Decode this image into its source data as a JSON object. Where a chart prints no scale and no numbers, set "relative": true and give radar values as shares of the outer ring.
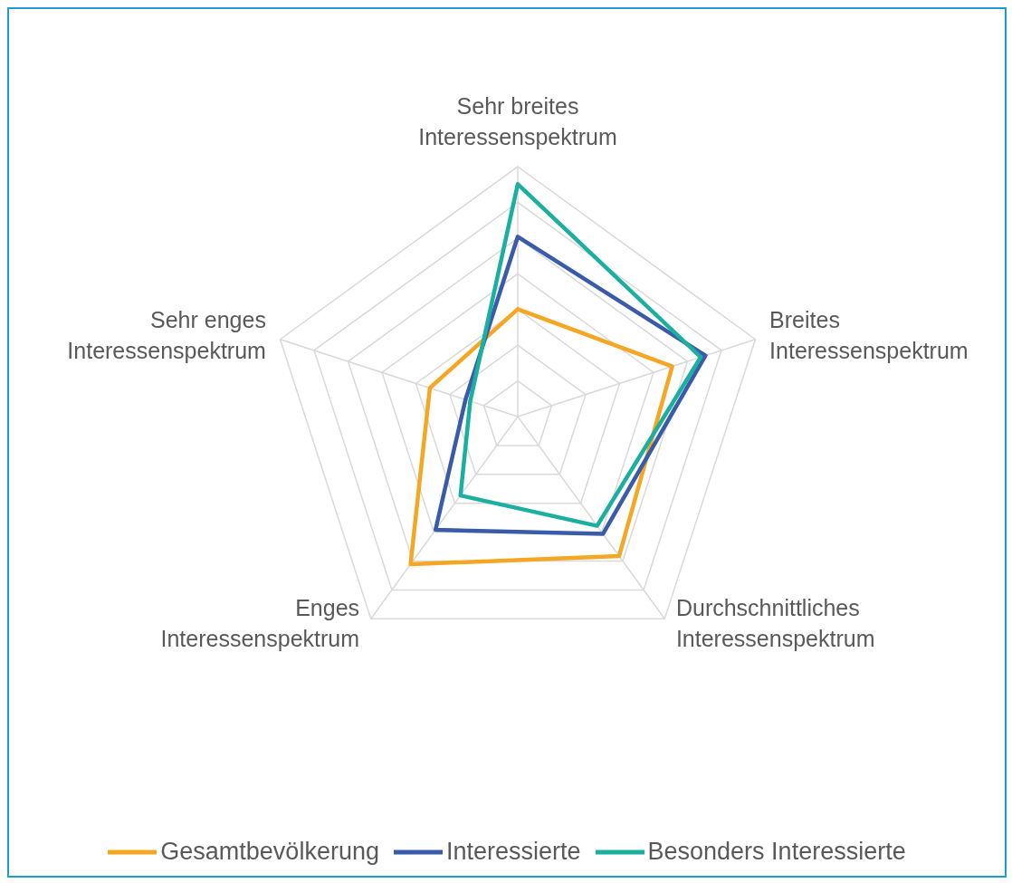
{
  "chart_data": {
    "type": "radar",
    "relative": true,
    "grid": true,
    "legend": "bottom",
    "marker": "none",
    "categories": [
      "Sehr breites Interessenspektrum",
      "Breites Interessenspektrum",
      "Durchschnittliches Interessenspektrum",
      "Enges Interessenspektrum",
      "Sehr enges Interessenspektrum"
    ],
    "series": [
      {
        "name": "Gesamtbevölkerung",
        "color": "#f5a623",
        "values": [
          0.43,
          0.65,
          0.69,
          0.73,
          0.37
        ]
      },
      {
        "name": "Interessierte",
        "color": "#3a5ba9",
        "values": [
          0.72,
          0.79,
          0.58,
          0.56,
          0.22
        ]
      },
      {
        "name": "Besonders Interessierte",
        "color": "#1aaf9f",
        "values": [
          0.93,
          0.77,
          0.54,
          0.39,
          0.2
        ]
      }
    ]
  }
}
